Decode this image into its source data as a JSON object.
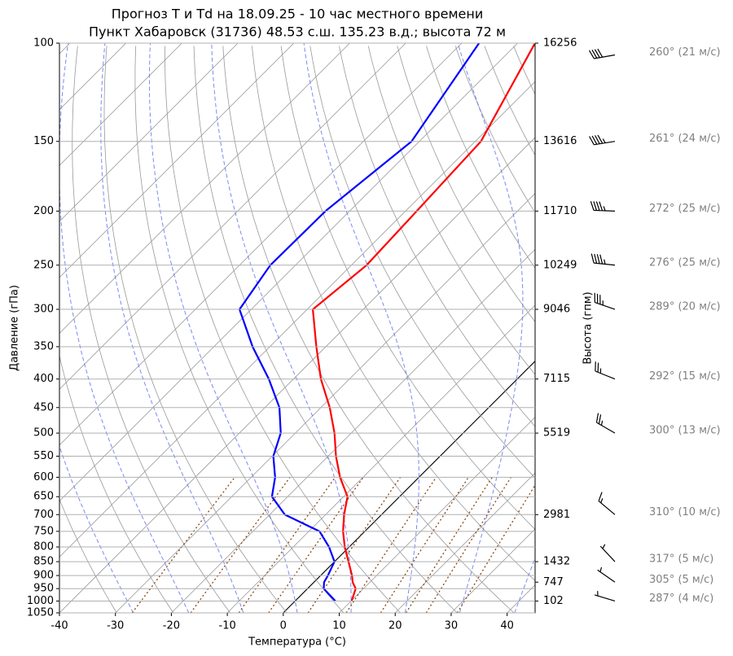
{
  "chart_data": {
    "type": "skewt",
    "title": "Прогноз T и Td на 18.09.25 - 10 час местного времени",
    "subtitle": "Пункт Хабаровск (31736) 48.53 с.ш. 135.23 в.д.; высота 72 м",
    "x_label": "Температура (°C)",
    "y_label": "Давление (гПа)",
    "y2_label": "Высота (гпм)",
    "xlim": [
      -40,
      45
    ],
    "xticks": [
      -40,
      -30,
      -20,
      -10,
      0,
      10,
      20,
      30,
      40
    ],
    "ylim": [
      1050,
      100
    ],
    "yticks": [
      100,
      150,
      200,
      250,
      300,
      350,
      400,
      450,
      500,
      550,
      600,
      650,
      700,
      750,
      800,
      850,
      900,
      950,
      1000,
      1050
    ],
    "log_y": true,
    "grid": true,
    "pressure": [
      1000,
      950,
      925,
      900,
      850,
      800,
      750,
      700,
      650,
      600,
      550,
      500,
      450,
      400,
      350,
      300,
      250,
      200,
      150,
      100
    ],
    "series": [
      {
        "color": "#ff0000",
        "values": [
          10.1,
          8.6,
          6.9,
          5.6,
          2.5,
          -0.8,
          -3.9,
          -6.7,
          -9.3,
          -14.1,
          -18.6,
          -23.0,
          -28.4,
          -35.1,
          -41.7,
          -49.0,
          -47.3,
          -48.0,
          -49.0,
          -56.9
        ]
      },
      {
        "color": "#0000ff",
        "values": [
          7.2,
          2.9,
          1.8,
          1.3,
          0.0,
          -3.6,
          -8.1,
          -17.3,
          -22.8,
          -25.7,
          -29.8,
          -32.6,
          -37.4,
          -44.4,
          -53.1,
          -62.1,
          -64.5,
          -64.3,
          -61.4,
          -66.9
        ]
      }
    ],
    "height_levels": {
      "pressure": [
        100,
        150,
        200,
        250,
        300,
        400,
        500,
        700,
        850,
        925,
        1000
      ],
      "values": [
        16256,
        13616,
        11710,
        10249,
        9046,
        7115,
        5519,
        2981,
        1432,
        747,
        102
      ]
    },
    "wind": {
      "pressure": [
        105,
        150,
        200,
        250,
        300,
        400,
        500,
        700,
        850,
        925,
        1000
      ],
      "direction": [
        260,
        261,
        272,
        276,
        289,
        292,
        300,
        310,
        317,
        305,
        287
      ],
      "speed": [
        21,
        24,
        25,
        25,
        20,
        15,
        13,
        10,
        5,
        5,
        4
      ],
      "labels": [
        "260° (21 м/с)",
        "261° (24 м/с)",
        "272° (25 м/с)",
        "276° (25 м/с)",
        "289° (20 м/с)",
        "292° (15 м/с)",
        "300° (13 м/с)",
        "310° (10 м/с)",
        "317° (5 м/с)",
        "305° (5 м/с)",
        "287° (4 м/с)"
      ]
    }
  }
}
